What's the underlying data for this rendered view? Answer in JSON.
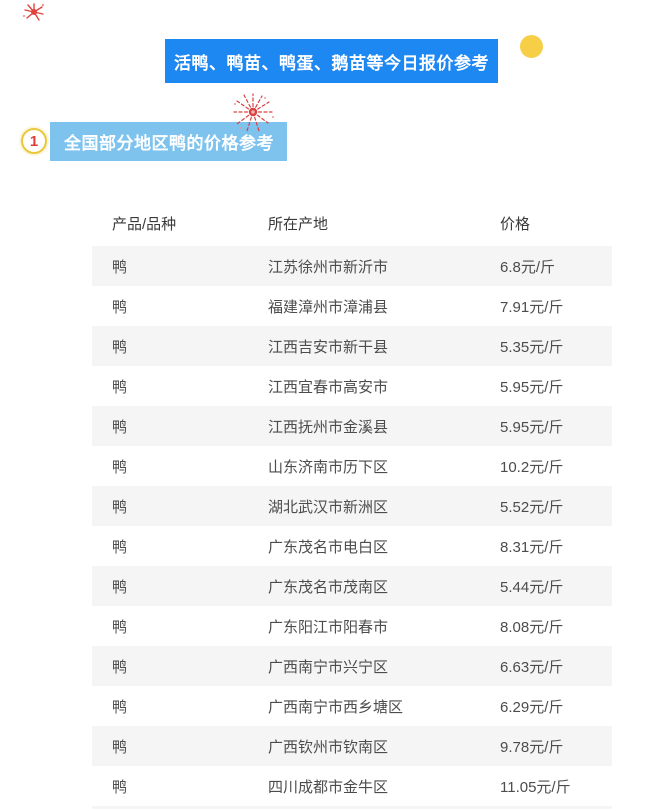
{
  "header": {
    "banner_title": "活鸭、鸭苗、鸭蛋、鹅苗等今日报价参考"
  },
  "section": {
    "number": "1",
    "title": "全国部分地区鸭的价格参考"
  },
  "table": {
    "columns": [
      "产品/品种",
      "所在产地",
      "价格"
    ],
    "rows": [
      {
        "product": "鸭",
        "origin": "江苏徐州市新沂市",
        "price": "6.8元/斤"
      },
      {
        "product": "鸭",
        "origin": "福建漳州市漳浦县",
        "price": "7.91元/斤"
      },
      {
        "product": "鸭",
        "origin": "江西吉安市新干县",
        "price": "5.35元/斤"
      },
      {
        "product": "鸭",
        "origin": "江西宜春市高安市",
        "price": "5.95元/斤"
      },
      {
        "product": "鸭",
        "origin": "江西抚州市金溪县",
        "price": "5.95元/斤"
      },
      {
        "product": "鸭",
        "origin": "山东济南市历下区",
        "price": "10.2元/斤"
      },
      {
        "product": "鸭",
        "origin": "湖北武汉市新洲区",
        "price": "5.52元/斤"
      },
      {
        "product": "鸭",
        "origin": "广东茂名市电白区",
        "price": "8.31元/斤"
      },
      {
        "product": "鸭",
        "origin": "广东茂名市茂南区",
        "price": "5.44元/斤"
      },
      {
        "product": "鸭",
        "origin": "广东阳江市阳春市",
        "price": "8.08元/斤"
      },
      {
        "product": "鸭",
        "origin": "广西南宁市兴宁区",
        "price": "6.63元/斤"
      },
      {
        "product": "鸭",
        "origin": "广西南宁市西乡塘区",
        "price": "6.29元/斤"
      },
      {
        "product": "鸭",
        "origin": "广西钦州市钦南区",
        "price": "9.78元/斤"
      },
      {
        "product": "鸭",
        "origin": "四川成都市金牛区",
        "price": "11.05元/斤"
      }
    ]
  },
  "icons": {
    "top_left_decoration": "firecracker-spark",
    "banner_corner": "yellow-dot",
    "section_decoration": "firework-burst"
  },
  "colors": {
    "banner": "#1d87f2",
    "section_box": "#7ec3ee",
    "dot": "#f6cf47",
    "stripe": "#f5f5f6",
    "badge_border": "#e9c83e",
    "badge_number": "#e03c3a",
    "firework": "#e0433c",
    "header_text": "#3a3a3a",
    "row_text": "#4c4c4c"
  }
}
